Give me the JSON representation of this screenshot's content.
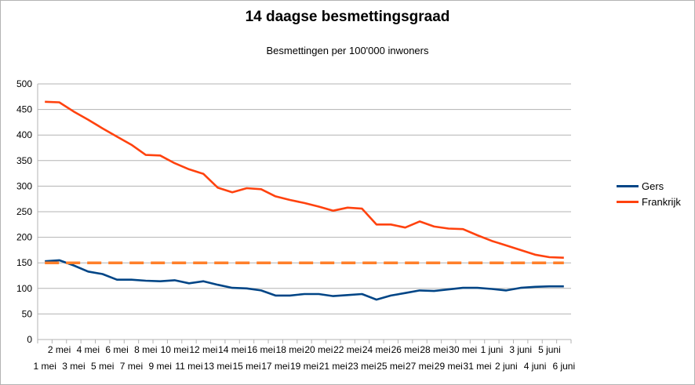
{
  "chart_data": {
    "type": "line",
    "title": "14 daagse besmettingsgraad",
    "subtitle": "Besmettingen per 100'000 inwoners",
    "xlabel": "",
    "ylabel": "",
    "ylim": [
      0,
      500
    ],
    "yticks": [
      0,
      50,
      100,
      150,
      200,
      250,
      300,
      350,
      400,
      450,
      500
    ],
    "grid": true,
    "legend_position": "right",
    "categories": [
      "1 mei",
      "2 mei",
      "3 mei",
      "4 mei",
      "5 mei",
      "6 mei",
      "7 mei",
      "8 mei",
      "9 mei",
      "10 mei",
      "11 mei",
      "12 mei",
      "13 mei",
      "14 mei",
      "15 mei",
      "16 mei",
      "17 mei",
      "18 mei",
      "19 mei",
      "20 mei",
      "21 mei",
      "22 mei",
      "23 mei",
      "24 mei",
      "25 mei",
      "26 mei",
      "27 mei",
      "28 mei",
      "29 mei",
      "30 mei",
      "31 mei",
      "1 juni",
      "2 juni",
      "3 juni",
      "4 juni",
      "5 juni",
      "6 juni"
    ],
    "series": [
      {
        "name": "Gers",
        "color": "#004586",
        "values": [
          153,
          155,
          145,
          133,
          128,
          117,
          117,
          115,
          114,
          116,
          110,
          114,
          107,
          101,
          100,
          96,
          86,
          86,
          89,
          89,
          85,
          87,
          89,
          78,
          86,
          91,
          96,
          95,
          98,
          101,
          101,
          99,
          96,
          101,
          103,
          104,
          104
        ]
      },
      {
        "name": "Frankrijk",
        "color": "#ff420e",
        "values": [
          465,
          464,
          446,
          430,
          413,
          397,
          381,
          361,
          360,
          345,
          333,
          324,
          297,
          288,
          296,
          294,
          280,
          273,
          267,
          260,
          252,
          258,
          256,
          225,
          225,
          219,
          231,
          221,
          217,
          216,
          204,
          193,
          184,
          175,
          166,
          161,
          160
        ]
      },
      {
        "name": "",
        "color": "#ff7f2a",
        "dashed": true,
        "values": [
          150,
          150,
          150,
          150,
          150,
          150,
          150,
          150,
          150,
          150,
          150,
          150,
          150,
          150,
          150,
          150,
          150,
          150,
          150,
          150,
          150,
          150,
          150,
          150,
          150,
          150,
          150,
          150,
          150,
          150,
          150,
          150,
          150,
          150,
          150,
          150,
          150
        ]
      }
    ]
  },
  "legend": {
    "gers": "Gers",
    "frankrijk": "Frankrijk",
    "gers_color": "#004586",
    "frankrijk_color": "#ff420e"
  }
}
